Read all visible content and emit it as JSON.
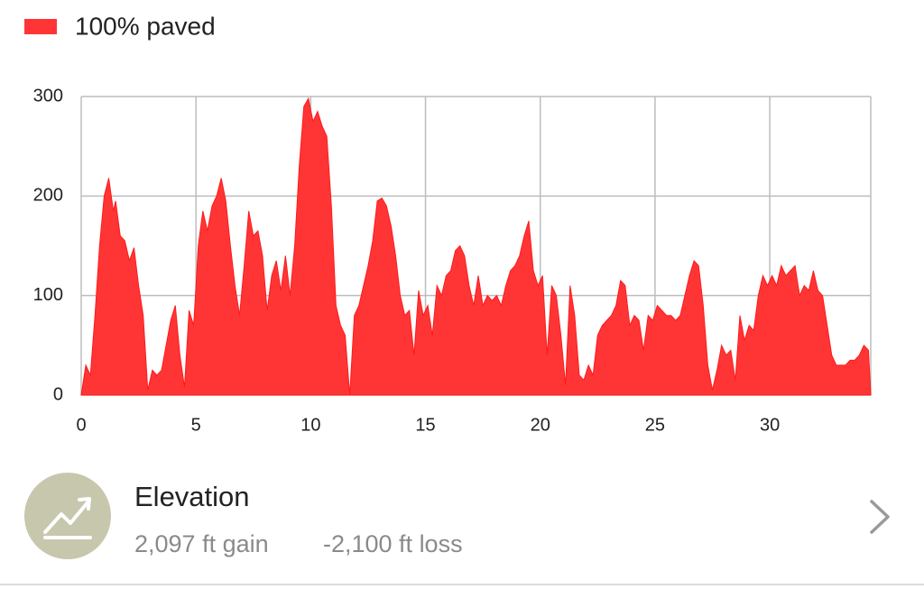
{
  "chart_data": {
    "type": "area",
    "x": [
      0,
      0.2,
      0.4,
      0.6,
      0.8,
      1.0,
      1.2,
      1.4,
      1.5,
      1.7,
      1.9,
      2.1,
      2.3,
      2.5,
      2.7,
      2.9,
      3.1,
      3.3,
      3.5,
      3.7,
      3.9,
      4.1,
      4.3,
      4.5,
      4.7,
      4.9,
      5.1,
      5.3,
      5.5,
      5.7,
      5.9,
      6.1,
      6.3,
      6.5,
      6.7,
      6.9,
      7.1,
      7.3,
      7.5,
      7.7,
      7.9,
      8.1,
      8.3,
      8.5,
      8.7,
      8.9,
      9.1,
      9.3,
      9.5,
      9.7,
      9.9,
      10.1,
      10.3,
      10.5,
      10.7,
      10.9,
      11.1,
      11.3,
      11.5,
      11.7,
      11.9,
      12.1,
      12.3,
      12.5,
      12.7,
      12.9,
      13.1,
      13.3,
      13.5,
      13.7,
      13.9,
      14.1,
      14.3,
      14.5,
      14.7,
      14.9,
      15.1,
      15.3,
      15.5,
      15.7,
      15.9,
      16.1,
      16.3,
      16.5,
      16.7,
      16.9,
      17.1,
      17.3,
      17.5,
      17.7,
      17.9,
      18.1,
      18.3,
      18.5,
      18.7,
      18.9,
      19.1,
      19.3,
      19.5,
      19.7,
      19.9,
      20.1,
      20.3,
      20.5,
      20.7,
      20.9,
      21.1,
      21.3,
      21.5,
      21.7,
      21.9,
      22.1,
      22.3,
      22.5,
      22.7,
      22.9,
      23.1,
      23.3,
      23.5,
      23.7,
      23.9,
      24.1,
      24.3,
      24.5,
      24.7,
      24.9,
      25.1,
      25.3,
      25.5,
      25.7,
      25.9,
      26.1,
      26.3,
      26.5,
      26.7,
      26.9,
      27.1,
      27.3,
      27.5,
      27.7,
      27.9,
      28.1,
      28.3,
      28.5,
      28.7,
      28.9,
      29.1,
      29.3,
      29.5,
      29.7,
      29.9,
      30.1,
      30.3,
      30.5,
      30.7,
      30.9,
      31.1,
      31.3,
      31.5,
      31.7,
      31.9,
      32.1,
      32.3,
      32.5,
      32.7,
      32.9,
      33.1,
      33.3,
      33.5,
      33.7,
      33.9,
      34.1,
      34.3,
      34.4
    ],
    "series": [
      {
        "name": "100% paved",
        "color": "#ff3535",
        "values": [
          0,
          30,
          20,
          80,
          150,
          200,
          218,
          185,
          195,
          160,
          155,
          135,
          148,
          110,
          80,
          5,
          25,
          20,
          25,
          50,
          75,
          90,
          40,
          8,
          85,
          70,
          150,
          185,
          165,
          190,
          200,
          218,
          195,
          150,
          110,
          80,
          130,
          185,
          160,
          165,
          140,
          85,
          120,
          135,
          105,
          140,
          100,
          150,
          230,
          290,
          298,
          275,
          285,
          270,
          260,
          190,
          90,
          70,
          60,
          0,
          80,
          90,
          110,
          130,
          155,
          195,
          198,
          190,
          170,
          140,
          100,
          80,
          85,
          40,
          105,
          80,
          90,
          60,
          110,
          100,
          120,
          125,
          145,
          150,
          140,
          110,
          90,
          120,
          90,
          100,
          95,
          100,
          90,
          110,
          125,
          130,
          140,
          160,
          175,
          125,
          110,
          120,
          40,
          110,
          100,
          60,
          10,
          110,
          80,
          20,
          15,
          30,
          20,
          60,
          70,
          75,
          80,
          90,
          115,
          110,
          70,
          80,
          75,
          45,
          80,
          75,
          90,
          85,
          80,
          80,
          75,
          80,
          100,
          120,
          135,
          130,
          90,
          30,
          5,
          25,
          50,
          40,
          45,
          15,
          80,
          55,
          70,
          65,
          100,
          120,
          110,
          120,
          110,
          130,
          120,
          125,
          130,
          100,
          110,
          105,
          125,
          105,
          100,
          70,
          40,
          30,
          30,
          30,
          35,
          35,
          40,
          50,
          45,
          0
        ]
      }
    ],
    "xlim": [
      0,
      34.4
    ],
    "ylim": [
      0,
      300
    ],
    "xticks": [
      0,
      5,
      10,
      15,
      20,
      25,
      30
    ],
    "yticks": [
      0,
      100,
      200,
      300
    ],
    "grid": true
  },
  "summary": {
    "title": "Elevation",
    "gain": "2,097 ft gain",
    "loss": "-2,100 ft loss"
  }
}
